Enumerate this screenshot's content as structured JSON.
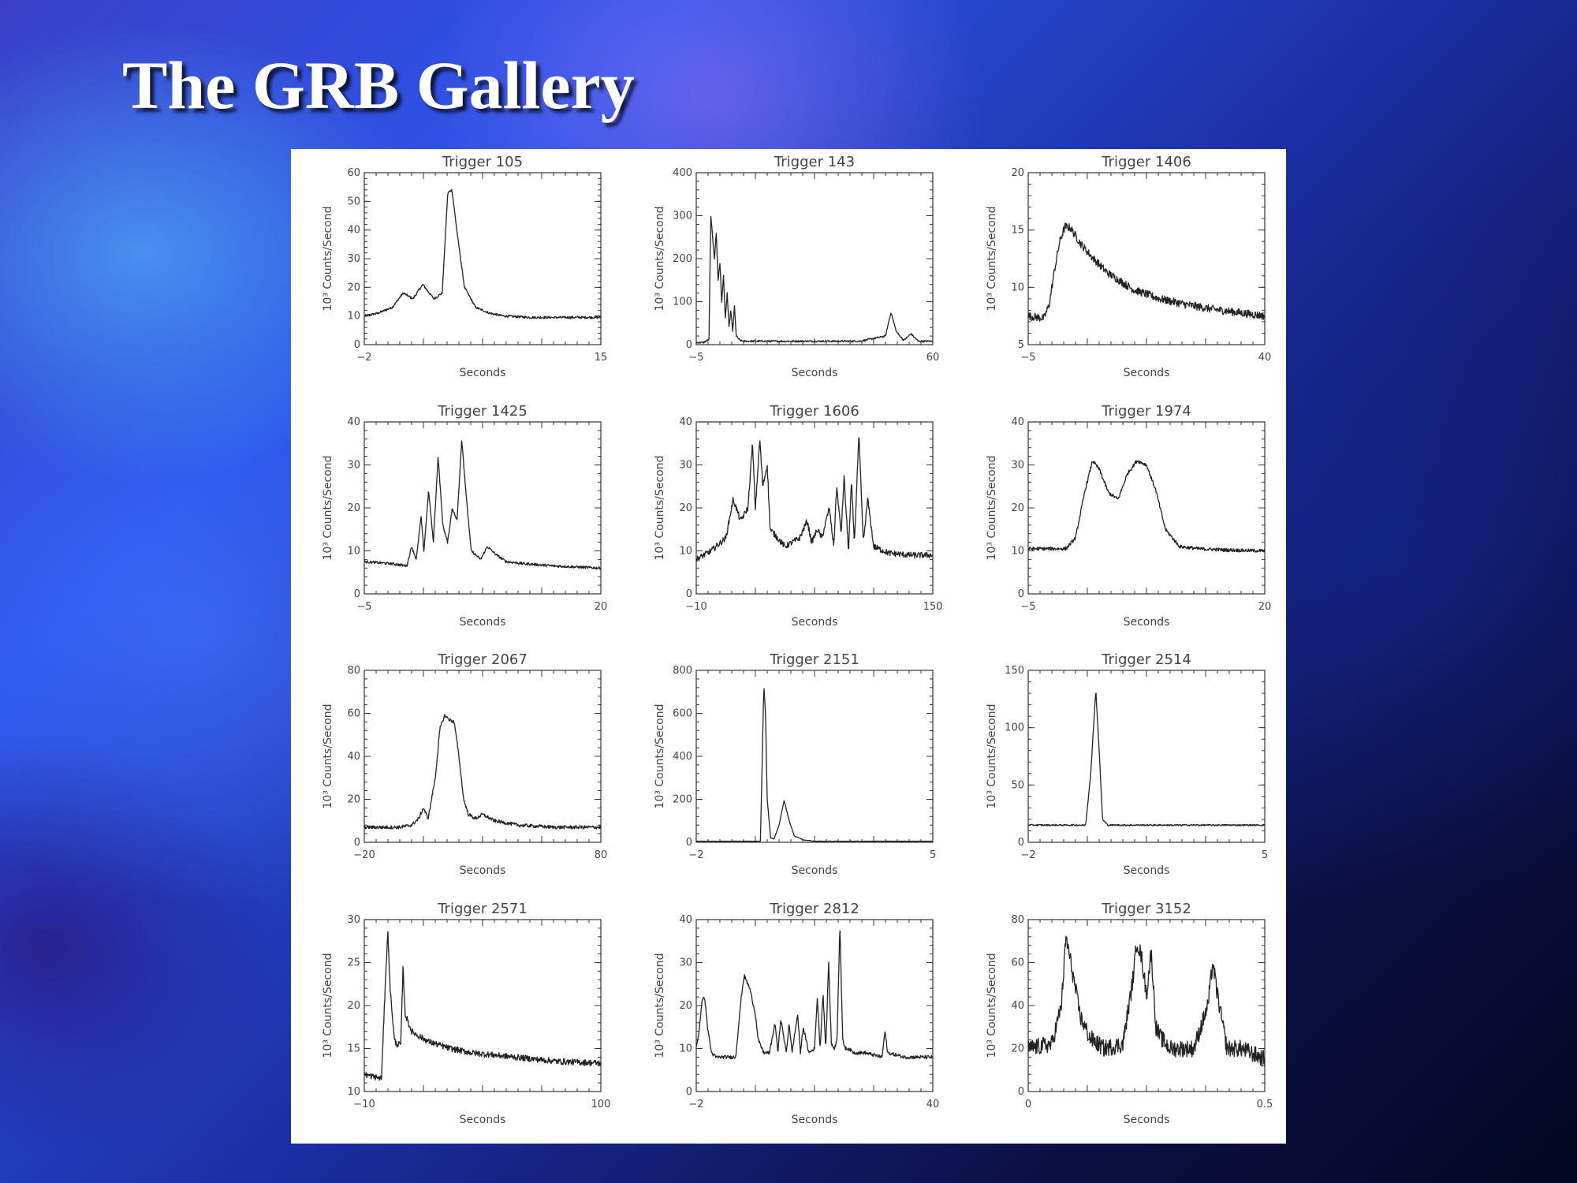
{
  "slide": {
    "title": "The GRB Gallery"
  },
  "colors": {
    "panel_background": "#ffffff",
    "curve": "#222222",
    "title_text": "#ffffff"
  },
  "chart_data": [
    {
      "type": "line",
      "title": "Trigger 105",
      "xlabel": "Seconds",
      "ylabel": "10³ Counts/Second",
      "xlim": [
        -2,
        15
      ],
      "ylim": [
        0,
        60
      ],
      "xticks": [
        -2,
        15
      ],
      "yticks": [
        0,
        10,
        20,
        30,
        40,
        50,
        60
      ],
      "noise": 0.4,
      "x": [
        -2,
        -1,
        0,
        0.8,
        1.5,
        2.2,
        3,
        3.6,
        4.0,
        4.3,
        4.7,
        5.2,
        6,
        7,
        8,
        10,
        12,
        15
      ],
      "y": [
        10,
        11,
        13,
        18,
        16,
        21,
        16,
        18,
        53,
        54,
        38,
        20,
        13,
        11,
        10,
        9.5,
        9.5,
        9.5
      ]
    },
    {
      "type": "line",
      "title": "Trigger 143",
      "xlabel": "Seconds",
      "ylabel": "10³ Counts/Second",
      "xlim": [
        -5,
        60
      ],
      "ylim": [
        0,
        400
      ],
      "xticks": [
        -5,
        60
      ],
      "yticks": [
        0,
        100,
        200,
        300,
        400
      ],
      "noise": 2,
      "x": [
        -5,
        -3,
        -1.5,
        -1,
        0,
        0.5,
        1,
        1.5,
        2,
        2.5,
        3,
        3.5,
        4,
        4.5,
        5,
        5.5,
        6,
        7,
        8,
        10,
        20,
        40,
        47,
        48.5,
        50,
        52,
        54,
        56,
        60
      ],
      "y": [
        5,
        5,
        12,
        300,
        200,
        260,
        150,
        190,
        100,
        160,
        60,
        120,
        40,
        80,
        30,
        90,
        20,
        10,
        8,
        8,
        8,
        8,
        20,
        75,
        30,
        10,
        25,
        8,
        8
      ]
    },
    {
      "type": "line",
      "title": "Trigger 1406",
      "xlabel": "Seconds",
      "ylabel": "10³ Counts/Second",
      "xlim": [
        -5,
        40
      ],
      "ylim": [
        5,
        20
      ],
      "xticks": [
        -5,
        40
      ],
      "yticks": [
        5,
        10,
        15,
        20
      ],
      "noise": 0.35,
      "x": [
        -5,
        -2,
        -1,
        0,
        1,
        2,
        3,
        4,
        5,
        7,
        10,
        15,
        20,
        25,
        30,
        35,
        40
      ],
      "y": [
        7.5,
        7.3,
        8.5,
        11.5,
        14,
        15.3,
        15.2,
        14.5,
        13.8,
        12.7,
        11.3,
        9.8,
        9,
        8.5,
        8.1,
        7.8,
        7.5
      ]
    },
    {
      "type": "line",
      "title": "Trigger 1425",
      "xlabel": "Seconds",
      "ylabel": "10³ Counts/Second",
      "xlim": [
        -5,
        20
      ],
      "ylim": [
        0,
        40
      ],
      "xticks": [
        -5,
        20
      ],
      "yticks": [
        0,
        10,
        20,
        30,
        40
      ],
      "noise": 0.3,
      "x": [
        -5,
        -2,
        -0.5,
        0,
        0.5,
        1,
        1.3,
        1.8,
        2.3,
        2.8,
        3.3,
        3.8,
        4.3,
        4.8,
        5.3,
        5.8,
        6.3,
        6.8,
        7.3,
        8,
        9,
        10,
        12,
        15,
        20
      ],
      "y": [
        7.5,
        7,
        6.5,
        11,
        8,
        18,
        10,
        24,
        12,
        32,
        16,
        12,
        20,
        17,
        36,
        22,
        10,
        9,
        8,
        11,
        9,
        7.5,
        7,
        6.5,
        6
      ]
    },
    {
      "type": "line",
      "title": "Trigger 1606",
      "xlabel": "Seconds",
      "ylabel": "10³ Counts/Second",
      "xlim": [
        -10,
        150
      ],
      "ylim": [
        0,
        40
      ],
      "xticks": [
        -10,
        150
      ],
      "yticks": [
        0,
        10,
        20,
        30,
        40
      ],
      "noise": 0.7,
      "x": [
        -10,
        0,
        10,
        15,
        20,
        25,
        28,
        30,
        33,
        35,
        38,
        40,
        45,
        50,
        60,
        65,
        68,
        72,
        75,
        80,
        83,
        85,
        88,
        90,
        93,
        95,
        97,
        100,
        103,
        106,
        110,
        120,
        135,
        150
      ],
      "y": [
        8,
        10,
        13,
        22,
        17,
        20,
        35,
        20,
        36,
        25,
        30,
        15,
        13,
        11,
        13,
        17,
        12,
        15,
        13,
        20,
        11,
        25,
        14,
        27,
        10,
        26,
        12,
        37,
        12,
        22,
        11,
        9.5,
        9,
        9
      ]
    },
    {
      "type": "line",
      "title": "Trigger 1974",
      "xlabel": "Seconds",
      "ylabel": "10³ Counts/Second",
      "xlim": [
        -5,
        20
      ],
      "ylim": [
        0,
        40
      ],
      "xticks": [
        -5,
        20
      ],
      "yticks": [
        0,
        10,
        20,
        30,
        40
      ],
      "noise": 0.4,
      "x": [
        -5,
        -1,
        0,
        1,
        1.8,
        2.5,
        3.5,
        4.5,
        5.5,
        6.5,
        7.5,
        8.5,
        9.5,
        11,
        13,
        16,
        20
      ],
      "y": [
        10.5,
        10.5,
        13,
        24,
        31,
        29,
        23.5,
        22,
        28,
        31,
        30,
        24,
        15,
        11,
        10.5,
        10.2,
        10
      ]
    },
    {
      "type": "line",
      "title": "Trigger 2067",
      "xlabel": "Seconds",
      "ylabel": "10³ Counts/Second",
      "xlim": [
        -20,
        80
      ],
      "ylim": [
        0,
        80
      ],
      "xticks": [
        -20,
        80
      ],
      "yticks": [
        0,
        20,
        40,
        60,
        80
      ],
      "noise": 0.8,
      "x": [
        -20,
        -5,
        0,
        3,
        5,
        7,
        10,
        12,
        14,
        16,
        18,
        20,
        22,
        24,
        27,
        30,
        35,
        45,
        60,
        80
      ],
      "y": [
        7,
        7,
        8,
        11,
        16,
        11,
        30,
        53,
        59,
        57,
        56,
        40,
        20,
        13,
        11,
        13,
        10,
        8,
        7,
        7
      ]
    },
    {
      "type": "line",
      "title": "Trigger 2151",
      "xlabel": "Seconds",
      "ylabel": "10³ Counts/Second",
      "xlim": [
        -2,
        5
      ],
      "ylim": [
        0,
        800
      ],
      "xticks": [
        -2,
        5
      ],
      "yticks": [
        0,
        200,
        400,
        600,
        800
      ],
      "noise": 1,
      "x": [
        -2,
        -0.5,
        -0.1,
        0.0,
        0.05,
        0.1,
        0.2,
        0.3,
        0.45,
        0.6,
        0.75,
        0.9,
        1.2,
        1.5,
        2,
        3,
        5
      ],
      "y": [
        5,
        5,
        5,
        730,
        600,
        200,
        20,
        15,
        80,
        195,
        100,
        30,
        10,
        5,
        5,
        5,
        5
      ]
    },
    {
      "type": "line",
      "title": "Trigger 2514",
      "xlabel": "Seconds",
      "ylabel": "10³ Counts/Second",
      "xlim": [
        -2,
        5
      ],
      "ylim": [
        0,
        150
      ],
      "xticks": [
        -2,
        5
      ],
      "yticks": [
        0,
        50,
        100,
        150
      ],
      "noise": 0.6,
      "x": [
        -2,
        -0.5,
        -0.3,
        -0.15,
        0,
        0.1,
        0.2,
        0.35,
        1,
        3,
        5
      ],
      "y": [
        15,
        15,
        15,
        60,
        133,
        80,
        20,
        15,
        15,
        15,
        15
      ]
    },
    {
      "type": "line",
      "title": "Trigger 2571",
      "xlabel": "Seconds",
      "ylabel": "10³ Counts/Second",
      "xlim": [
        -10,
        100
      ],
      "ylim": [
        10,
        30
      ],
      "xticks": [
        -10,
        100
      ],
      "yticks": [
        10,
        15,
        20,
        25,
        30
      ],
      "noise": 0.35,
      "x": [
        -10,
        -2,
        0,
        1,
        2,
        4,
        5,
        7,
        8,
        9,
        12,
        15,
        20,
        30,
        40,
        60,
        80,
        100
      ],
      "y": [
        12,
        11.5,
        24,
        28.5,
        22,
        16,
        15.5,
        15.5,
        24.5,
        19,
        17,
        16.5,
        15.8,
        15,
        14.5,
        14,
        13.5,
        13.3
      ]
    },
    {
      "type": "line",
      "title": "Trigger 2812",
      "xlabel": "Seconds",
      "ylabel": "10³ Counts/Second",
      "xlim": [
        -2,
        40
      ],
      "ylim": [
        0,
        40
      ],
      "xticks": [
        -2,
        40
      ],
      "yticks": [
        0,
        10,
        20,
        30,
        40
      ],
      "noise": 0.4,
      "x": [
        -2,
        -1.5,
        -1,
        -0.5,
        0,
        0.7,
        1.5,
        3,
        5,
        6,
        6.5,
        7.5,
        8.5,
        9,
        10,
        11,
        12,
        12.5,
        13,
        14,
        14.5,
        15,
        16,
        16.5,
        17,
        18,
        19,
        19.5,
        20,
        20.5,
        21,
        21.5,
        22,
        22.5,
        23,
        23.5,
        24,
        24.5,
        25,
        26,
        28,
        31,
        31.5,
        32,
        35,
        40
      ],
      "y": [
        10,
        14,
        21,
        22,
        15,
        9,
        8,
        8,
        8,
        22,
        27,
        24,
        18,
        12,
        9,
        9,
        16,
        9,
        17,
        9,
        16,
        9,
        18,
        9,
        15,
        9,
        10,
        22,
        10,
        23,
        10,
        30,
        11,
        10,
        12,
        39,
        12,
        10,
        10,
        9,
        9,
        8,
        14,
        9,
        8,
        8
      ]
    },
    {
      "type": "line",
      "title": "Trigger 3152",
      "xlabel": "Seconds",
      "ylabel": "10³ Counts/Second",
      "xlim": [
        0.0,
        0.5
      ],
      "ylim": [
        0,
        80
      ],
      "xticks": [
        0.0,
        0.5
      ],
      "yticks": [
        0,
        20,
        40,
        60,
        80
      ],
      "noise": 4,
      "x": [
        0.0,
        0.05,
        0.07,
        0.08,
        0.09,
        0.11,
        0.13,
        0.16,
        0.2,
        0.22,
        0.23,
        0.24,
        0.25,
        0.26,
        0.27,
        0.28,
        0.3,
        0.35,
        0.38,
        0.39,
        0.4,
        0.42,
        0.45,
        0.5
      ],
      "y": [
        20,
        22,
        40,
        72,
        60,
        35,
        25,
        20,
        22,
        50,
        70,
        62,
        45,
        65,
        30,
        25,
        20,
        20,
        40,
        60,
        45,
        20,
        20,
        15
      ]
    }
  ]
}
